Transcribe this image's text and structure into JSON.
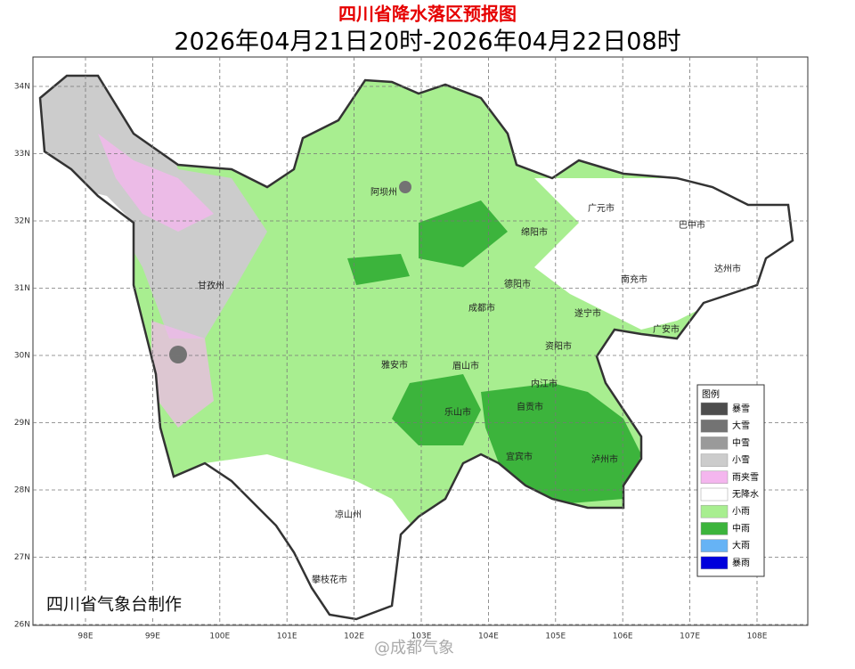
{
  "header": {
    "title": "四川省降水落区预报图",
    "subtitle": "2026年04月21日20时-2026年04月22日08时"
  },
  "axes": {
    "lat_labels": [
      "34N",
      "33N",
      "32N",
      "31N",
      "30N",
      "29N",
      "28N",
      "27N",
      "26N"
    ],
    "lon_labels": [
      "98E",
      "99E",
      "100E",
      "101E",
      "102E",
      "103E",
      "104E",
      "105E",
      "106E",
      "107E",
      "108E"
    ]
  },
  "cities": [
    "阿坝州",
    "广元市",
    "巴中市",
    "绵阳市",
    "甘孜州",
    "德阳市",
    "南充市",
    "达州市",
    "成都市",
    "遂宁市",
    "广安市",
    "资阳市",
    "雅安市",
    "眉山市",
    "内江市",
    "乐山市",
    "自贡市",
    "宜宾市",
    "泸州市",
    "凉山州",
    "攀枝花市"
  ],
  "legend": {
    "title": "图例",
    "items": [
      {
        "label": "暴雪",
        "color": "#4d4d4d"
      },
      {
        "label": "大雪",
        "color": "#737373"
      },
      {
        "label": "中雪",
        "color": "#9a9a9a"
      },
      {
        "label": "小雪",
        "color": "#cccccc"
      },
      {
        "label": "雨夹雪",
        "color": "#f4b6ee"
      },
      {
        "label": "无降水",
        "color": "#ffffff"
      },
      {
        "label": "小雨",
        "color": "#a8ee90"
      },
      {
        "label": "中雨",
        "color": "#3cb43c"
      },
      {
        "label": "大雨",
        "color": "#66b3f5"
      },
      {
        "label": "暴雨",
        "color": "#0000dc"
      }
    ]
  },
  "credit": "四川省气象台制作",
  "watermark": "@成都气象"
}
